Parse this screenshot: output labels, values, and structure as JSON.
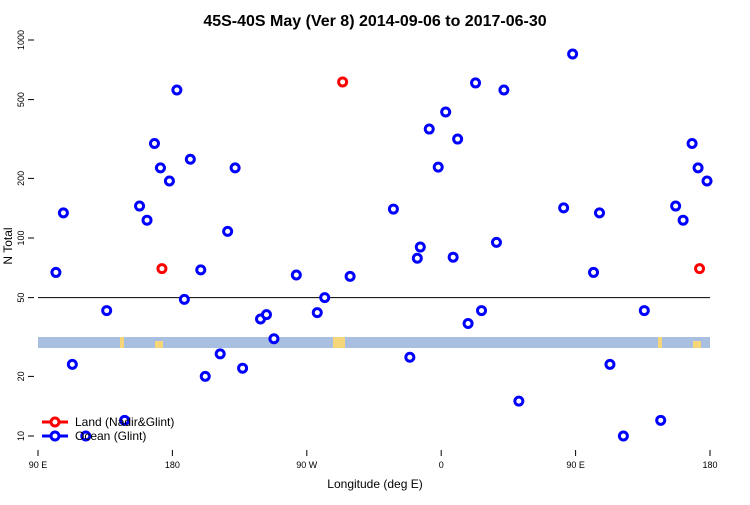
{
  "chart_data": {
    "type": "scatter",
    "title": "45S-40S May (Ver 8)   2014-09-06 to 2017-06-30",
    "x_label": "Longitude (deg E)",
    "y_label": "N Total",
    "xlim": [
      90,
      540
    ],
    "xticks": [
      {
        "value": 90,
        "label": "90 E"
      },
      {
        "value": 180,
        "label": "180"
      },
      {
        "value": 270,
        "label": "90 W"
      },
      {
        "value": 360,
        "label": "0"
      },
      {
        "value": 450,
        "label": "90 E"
      },
      {
        "value": 540,
        "label": "180"
      }
    ],
    "ylim": [
      10,
      1000
    ],
    "yticks": [
      10,
      20,
      50,
      100,
      200,
      500,
      1000
    ],
    "log_y": true,
    "reference_line": 50,
    "legend": "bottom-left",
    "series": [
      {
        "name": "Land (Nadir&Glint)",
        "color": "#ff0000",
        "x": [
          173,
          294,
          533
        ],
        "values": [
          70,
          614,
          70
        ]
      },
      {
        "name": "Ocean (Glint)",
        "color": "#0000ff",
        "x": [
          102,
          107,
          113,
          122,
          136,
          148,
          158,
          163,
          168,
          172,
          178,
          183,
          188,
          192,
          199,
          202,
          212,
          217,
          222,
          227,
          239,
          243,
          248,
          263,
          277,
          282,
          299,
          328,
          339,
          344,
          346,
          352,
          358,
          363,
          368,
          371,
          378,
          383,
          387,
          397,
          402,
          412,
          442,
          448,
          462,
          466,
          473,
          482,
          496,
          507,
          517,
          522,
          528,
          532,
          538
        ],
        "values": [
          67,
          134,
          23,
          10,
          43,
          12,
          145,
          123,
          300,
          226,
          194,
          559,
          49,
          250,
          69,
          20,
          26,
          108,
          226,
          22,
          39,
          41,
          31,
          65,
          42,
          50,
          64,
          140,
          25,
          79,
          90,
          355,
          228,
          433,
          80,
          316,
          37,
          607,
          43,
          95,
          559,
          15,
          142,
          850,
          67,
          134,
          23,
          10,
          43,
          12,
          145,
          123,
          300,
          226,
          194
        ]
      }
    ]
  }
}
